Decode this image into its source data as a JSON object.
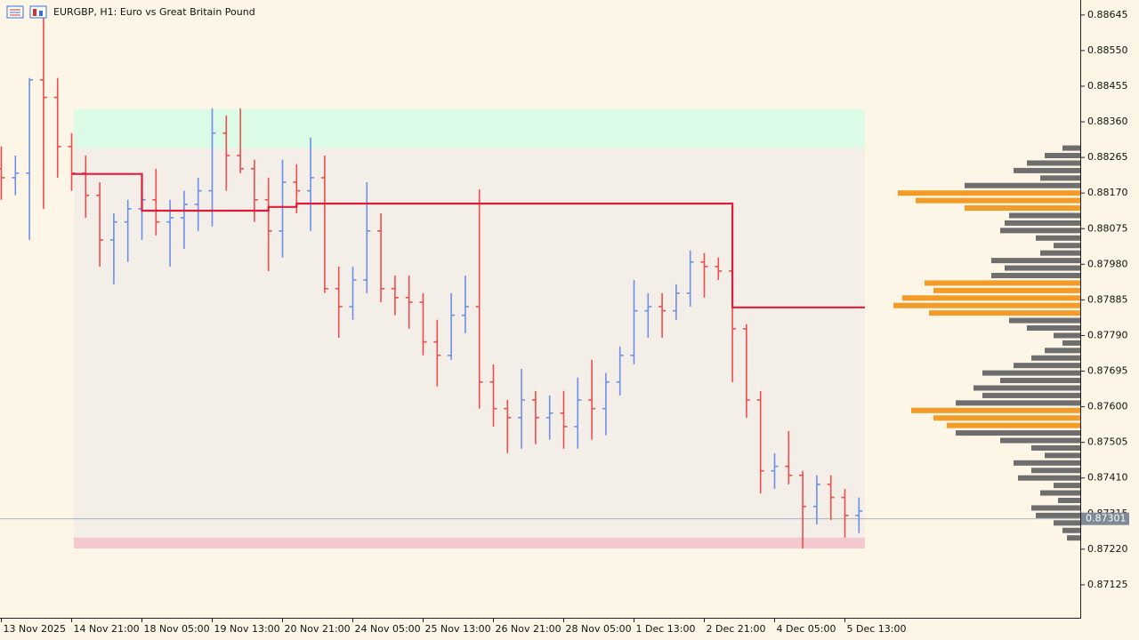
{
  "chart_data": {
    "type": "ohlc",
    "title": "EURGBP, H1:  Euro vs Great Britain Pound",
    "categories": [
      "13 Nov 2025",
      null,
      null,
      null,
      null,
      "14 Nov 21:00",
      null,
      null,
      null,
      null,
      "18 Nov 05:00",
      null,
      null,
      null,
      null,
      "19 Nov 13:00",
      null,
      null,
      null,
      null,
      "20 Nov 21:00",
      null,
      null,
      null,
      null,
      "24 Nov 05:00",
      null,
      null,
      null,
      null,
      "25 Nov 13:00",
      null,
      null,
      null,
      null,
      "26 Nov 21:00",
      null,
      null,
      null,
      null,
      "28 Nov 05:00",
      null,
      null,
      null,
      null,
      "1 Dec 13:00",
      null,
      null,
      null,
      null,
      "2 Dec 21:00",
      null,
      null,
      null,
      null,
      "4 Dec 05:00",
      null,
      null,
      null,
      null,
      "5 Dec 13:00",
      null
    ],
    "open": [
      0.88235,
      0.88211,
      0.88223,
      0.88472,
      0.88425,
      0.88294,
      0.88223,
      0.88164,
      0.88045,
      0.88093,
      0.88128,
      0.88152,
      0.88093,
      0.88104,
      0.8814,
      0.88176,
      0.8833,
      0.8827,
      0.88235,
      0.88152,
      0.88069,
      0.88199,
      0.88176,
      0.88211,
      0.87915,
      0.87867,
      0.87938,
      0.88069,
      0.87915,
      0.87891,
      0.87879,
      0.87773,
      0.87737,
      0.87844,
      0.87867,
      0.87666,
      0.87595,
      0.87571,
      0.87618,
      0.87571,
      0.87583,
      0.87547,
      0.87618,
      0.87595,
      0.87666,
      0.87737,
      0.87856,
      0.87867,
      0.87856,
      0.87903,
      0.87986,
      0.87974,
      0.87962,
      0.87808,
      0.87618,
      0.87429,
      0.87441,
      0.87417,
      0.87334,
      0.87393,
      0.87358,
      0.8731
    ],
    "high": [
      0.88294,
      0.8827,
      0.88477,
      0.8865,
      0.88477,
      0.8833,
      0.8827,
      0.88199,
      0.88116,
      0.88152,
      0.88223,
      0.88235,
      0.88152,
      0.88176,
      0.88211,
      0.88396,
      0.88377,
      0.88396,
      0.88259,
      0.88211,
      0.88259,
      0.88247,
      0.88318,
      0.8827,
      0.87974,
      0.87974,
      0.88199,
      0.88116,
      0.8795,
      0.8795,
      0.87903,
      0.87832,
      0.87903,
      0.8795,
      0.8818,
      0.87713,
      0.87618,
      0.87701,
      0.87642,
      0.8763,
      0.87642,
      0.87678,
      0.87725,
      0.8769,
      0.87761,
      0.87938,
      0.87903,
      0.87903,
      0.87927,
      0.88017,
      0.8801,
      0.87998,
      0.87998,
      0.8782,
      0.87642,
      0.87476,
      0.87535,
      0.87429,
      0.87417,
      0.87417,
      0.87381,
      0.87358
    ],
    "low": [
      0.88152,
      0.88164,
      0.88045,
      0.88128,
      0.88211,
      0.88176,
      0.88104,
      0.87974,
      0.87927,
      0.87986,
      0.88045,
      0.88057,
      0.87974,
      0.88021,
      0.88069,
      0.88081,
      0.88176,
      0.88223,
      0.88093,
      0.87962,
      0.87998,
      0.88116,
      0.88069,
      0.87903,
      0.87784,
      0.87832,
      0.87903,
      0.87879,
      0.87844,
      0.87808,
      0.87737,
      0.87654,
      0.87725,
      0.87796,
      0.87595,
      0.87547,
      0.87476,
      0.87488,
      0.875,
      0.87512,
      0.87488,
      0.87488,
      0.87512,
      0.87524,
      0.8763,
      0.87713,
      0.87784,
      0.87784,
      0.87832,
      0.87867,
      0.87891,
      0.87938,
      0.87666,
      0.87571,
      0.87369,
      0.87381,
      0.87393,
      0.87222,
      0.87286,
      0.87298,
      0.87251,
      0.87263
    ],
    "close": [
      0.88211,
      0.88223,
      0.88472,
      0.88425,
      0.88294,
      0.88223,
      0.88164,
      0.88045,
      0.88093,
      0.88128,
      0.88152,
      0.88093,
      0.88104,
      0.8814,
      0.88176,
      0.8833,
      0.8827,
      0.88235,
      0.88152,
      0.88069,
      0.88199,
      0.88176,
      0.88211,
      0.87915,
      0.87867,
      0.87938,
      0.88069,
      0.87915,
      0.87891,
      0.87879,
      0.87773,
      0.87737,
      0.87844,
      0.87867,
      0.87666,
      0.87595,
      0.87571,
      0.87618,
      0.87571,
      0.87583,
      0.87547,
      0.87618,
      0.87595,
      0.87666,
      0.87737,
      0.87856,
      0.87867,
      0.87856,
      0.87903,
      0.87986,
      0.87974,
      0.87962,
      0.87808,
      0.87618,
      0.87429,
      0.87441,
      0.87417,
      0.87334,
      0.87393,
      0.87358,
      0.8731,
      0.87322
    ],
    "up_color": "#6e8fe6",
    "down_color": "#f04c4c",
    "poc_values": [
      null,
      null,
      null,
      null,
      null,
      0.88221,
      0.88221,
      0.88221,
      0.88221,
      0.88221,
      0.88123,
      0.88123,
      0.88123,
      0.88123,
      0.88123,
      0.88123,
      0.88123,
      0.88123,
      0.88123,
      0.88133,
      0.88133,
      0.88142,
      0.88142,
      0.88142,
      0.88142,
      0.88142,
      0.88142,
      0.88142,
      0.88142,
      0.88142,
      0.88142,
      0.88142,
      0.88142,
      0.88142,
      0.88142,
      0.88142,
      0.88142,
      0.88142,
      0.88142,
      0.88142,
      0.88142,
      0.88142,
      0.88142,
      0.88142,
      0.88142,
      0.88142,
      0.88142,
      0.88142,
      0.88142,
      0.88142,
      0.88142,
      0.88142,
      0.87865,
      0.87865,
      0.87865,
      0.87865,
      0.87865,
      0.87865,
      0.87865,
      0.87865,
      0.87865,
      0.87865
    ],
    "poc_color": "#dc1e3c",
    "zones": [
      {
        "top": 0.88394,
        "bottom": 0.8829,
        "color": "#dcfbe6"
      },
      {
        "top": 0.8829,
        "bottom": 0.87251,
        "color": "#f3efe8"
      },
      {
        "top": 0.87251,
        "bottom": 0.87222,
        "color": "#f3c9cf"
      }
    ],
    "last_price": 0.87301,
    "last_price_color": "#7f8a99",
    "volume_profile": {
      "prices": [
        0.8829,
        0.8827,
        0.8825,
        0.8823,
        0.8821,
        0.8819,
        0.8817,
        0.8815,
        0.8813,
        0.8811,
        0.8809,
        0.8807,
        0.8805,
        0.8803,
        0.8801,
        0.8799,
        0.8797,
        0.8795,
        0.8793,
        0.8791,
        0.8789,
        0.8787,
        0.8785,
        0.8783,
        0.8781,
        0.8779,
        0.8777,
        0.8775,
        0.8773,
        0.8771,
        0.8769,
        0.8767,
        0.8765,
        0.8763,
        0.8761,
        0.8759,
        0.8757,
        0.8755,
        0.8753,
        0.8751,
        0.8749,
        0.8747,
        0.8745,
        0.8743,
        0.8741,
        0.8739,
        0.8737,
        0.8735,
        0.8733,
        0.8731,
        0.8729,
        0.8727,
        0.8725
      ],
      "volumes": [
        20,
        40,
        60,
        75,
        45,
        130,
        205,
        185,
        130,
        80,
        85,
        90,
        50,
        30,
        45,
        100,
        85,
        100,
        175,
        165,
        200,
        210,
        170,
        80,
        60,
        30,
        20,
        40,
        55,
        75,
        110,
        90,
        120,
        110,
        140,
        190,
        165,
        150,
        140,
        90,
        55,
        40,
        75,
        55,
        70,
        30,
        45,
        25,
        55,
        50,
        30,
        20,
        15
      ],
      "colors": [
        "#6e6e6e",
        "#6e6e6e",
        "#6e6e6e",
        "#6e6e6e",
        "#6e6e6e",
        "#6e6e6e",
        "#f29b28",
        "#f29b28",
        "#f29b28",
        "#6e6e6e",
        "#6e6e6e",
        "#6e6e6e",
        "#6e6e6e",
        "#6e6e6e",
        "#6e6e6e",
        "#6e6e6e",
        "#6e6e6e",
        "#6e6e6e",
        "#f29b28",
        "#f29b28",
        "#f29b28",
        "#f29b28",
        "#f29b28",
        "#6e6e6e",
        "#6e6e6e",
        "#6e6e6e",
        "#6e6e6e",
        "#6e6e6e",
        "#6e6e6e",
        "#6e6e6e",
        "#6e6e6e",
        "#6e6e6e",
        "#6e6e6e",
        "#6e6e6e",
        "#6e6e6e",
        "#f29b28",
        "#f29b28",
        "#f29b28",
        "#6e6e6e",
        "#6e6e6e",
        "#6e6e6e",
        "#6e6e6e",
        "#6e6e6e",
        "#6e6e6e",
        "#6e6e6e",
        "#6e6e6e",
        "#6e6e6e",
        "#6e6e6e",
        "#6e6e6e",
        "#6e6e6e",
        "#6e6e6e",
        "#6e6e6e",
        "#6e6e6e"
      ]
    },
    "ylim": [
      0.87037,
      0.88685
    ],
    "yticks": [
      0.88645,
      {
        "value": 0.8855,
        "label": "0.88550"
      },
      0.88455,
      {
        "value": 0.8836,
        "label": "0.88360"
      },
      0.88265,
      {
        "value": 0.8817,
        "label": "0.88170"
      },
      0.88075,
      {
        "value": 0.8798,
        "label": "0.87980"
      },
      0.87885,
      {
        "value": 0.8779,
        "label": "0.87790"
      },
      0.87695,
      {
        "value": 0.876,
        "label": "0.87600"
      },
      0.87505,
      {
        "value": 0.8741,
        "label": "0.87410"
      },
      0.87315,
      {
        "value": 0.8722,
        "label": "0.87220"
      },
      0.87125
    ]
  }
}
